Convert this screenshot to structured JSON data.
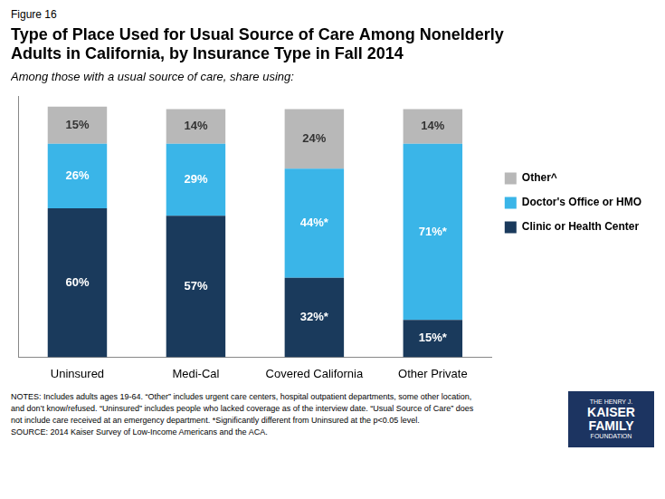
{
  "chart_data": {
    "type": "bar",
    "figure_label": "Figure 16",
    "title": [
      "Type of Place Used for Usual Source of Care Among Nonelderly",
      "Adults in California, by Insurance Type in Fall 2014"
    ],
    "subtitle": "Among those with a usual source of care, share using:",
    "categories": [
      "Uninsured",
      "Medi-Cal",
      "Covered California",
      "Other Private"
    ],
    "series": [
      {
        "name": "Clinic or Health Center",
        "color": "#1a3a5c",
        "values": [
          60,
          57,
          32,
          15
        ],
        "value_labels": [
          "60%",
          "57%",
          "32%*",
          "15%*"
        ]
      },
      {
        "name": "Doctor's Office or HMO",
        "color": "#3ab5e8",
        "values": [
          26,
          29,
          44,
          71
        ],
        "value_labels": [
          "26%",
          "29%",
          "44%*",
          "71%*"
        ]
      },
      {
        "name": "Other^",
        "color": "#b8b8b8",
        "values": [
          15,
          14,
          24,
          14
        ],
        "value_labels": [
          "15%",
          "14%",
          "24%",
          "14%"
        ]
      }
    ],
    "ylim": [
      0,
      105
    ],
    "stacked": true,
    "data_labels": true,
    "tick_labels": "x",
    "grid": false,
    "legend": "right",
    "notes": [
      "NOTES: Includes adults ages 19-64. “Other” includes urgent care centers, hospital outpatient departments, some other location,",
      "and don’t know/refused. “Uninsured” includes people who lacked coverage as of the interview date. “Usual Source of Care” does",
      "not include care received at an emergency department. *Significantly different from Uninsured at the p<0.05 level.",
      "SOURCE: 2014 Kaiser Survey of Low-Income Americans and the ACA."
    ],
    "annotations": [
      "THE HENRY J.",
      "KAISER",
      "FAMILY",
      "FOUNDATION"
    ]
  }
}
